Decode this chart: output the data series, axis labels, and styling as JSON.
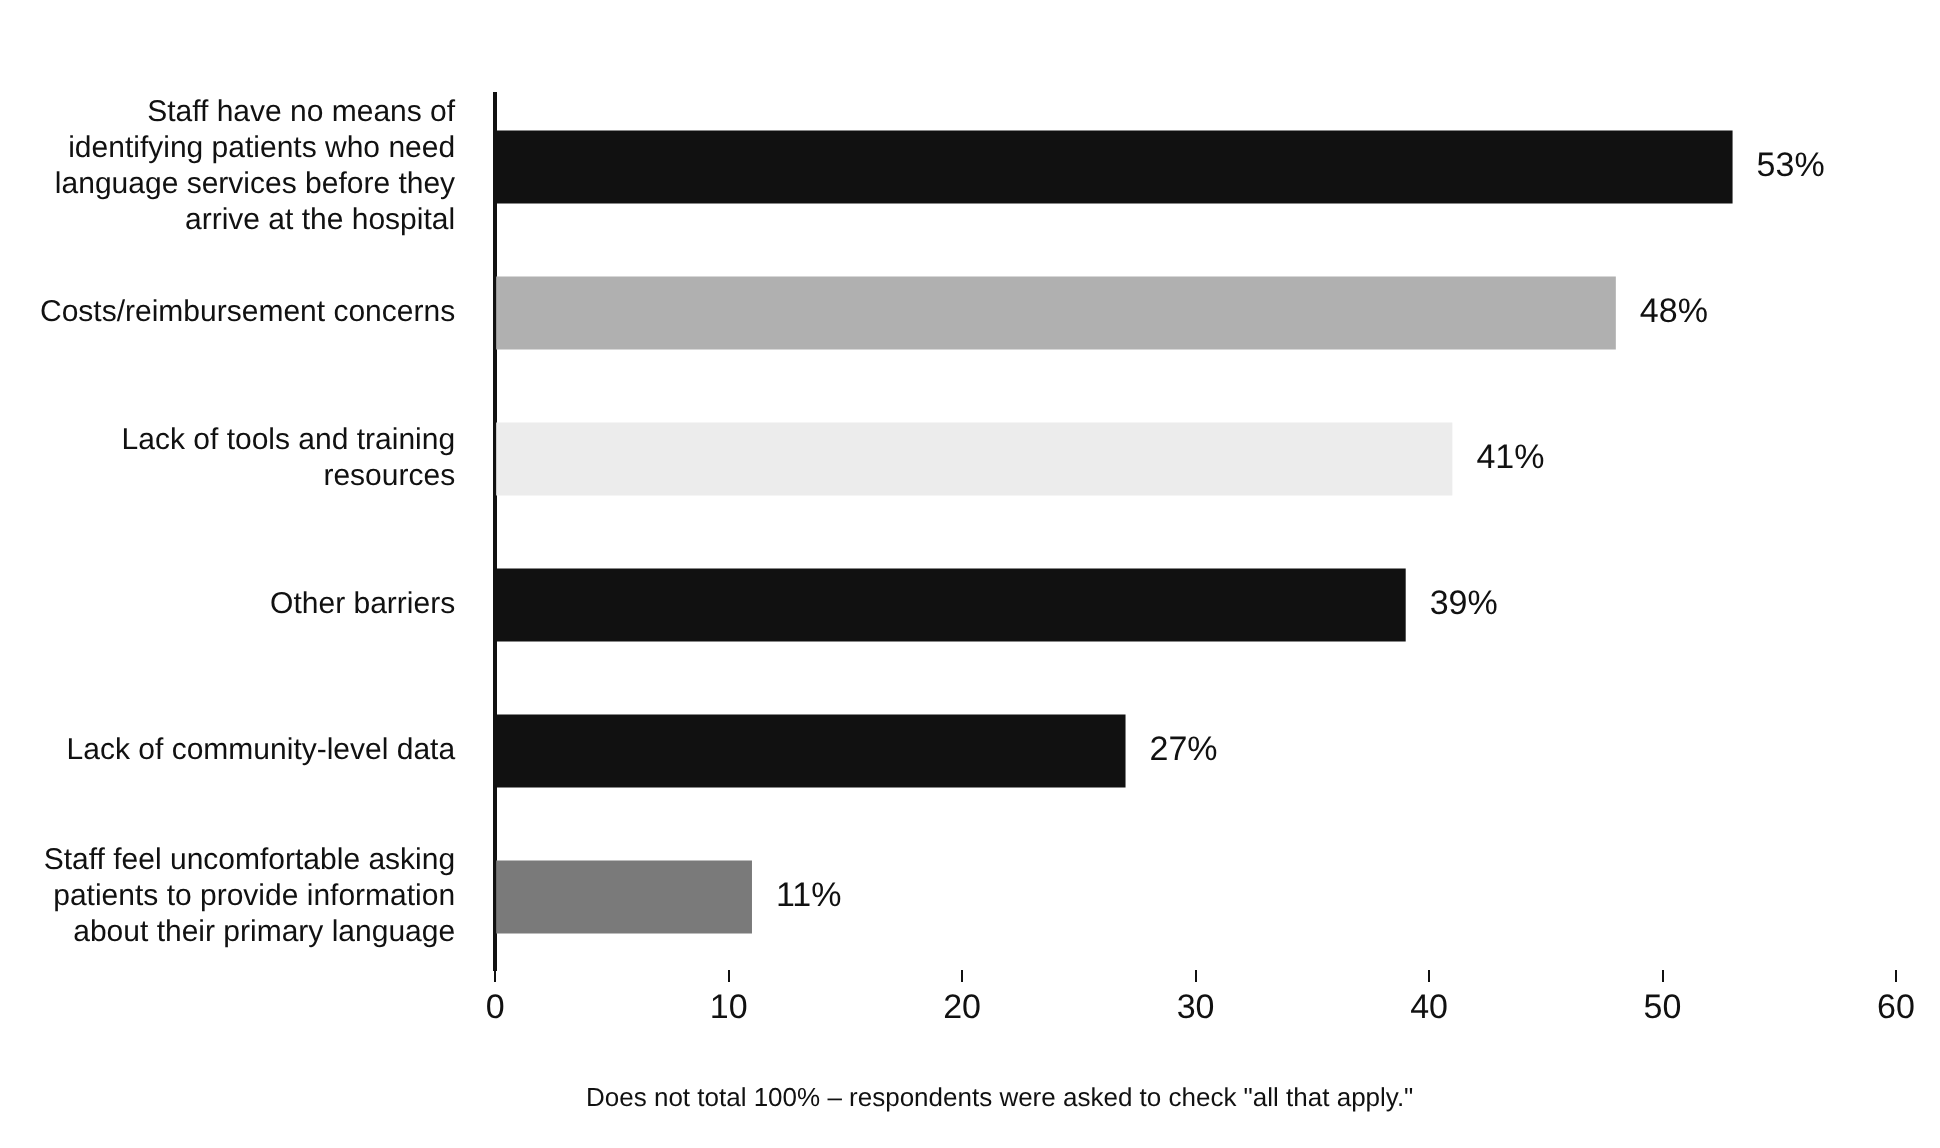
{
  "chart_data": {
    "type": "bar",
    "orientation": "horizontal",
    "categories": [
      "Staff have no means of identifying patients who need language services before they arrive at the hospital",
      "Costs/reimbursement concerns",
      "Lack of tools and training resources",
      "Other barriers",
      "Lack of community-level data",
      "Staff feel uncomfortable asking patients to provide information about their primary language"
    ],
    "values": [
      53,
      48,
      41,
      39,
      27,
      11
    ],
    "colors": [
      "#111111",
      "#b0b0b0",
      "#ececec",
      "#111111",
      "#111111",
      "#7a7a7a"
    ],
    "value_labels": [
      "53%",
      "48%",
      "41%",
      "39%",
      "27%",
      "11%"
    ],
    "xlim": [
      0,
      60
    ],
    "xticks": [
      0,
      10,
      20,
      30,
      40,
      50,
      60
    ],
    "grid": false,
    "legend": false,
    "annotations": [
      "Does not total 100% – respondents were asked to check \"all that apply.\""
    ]
  }
}
